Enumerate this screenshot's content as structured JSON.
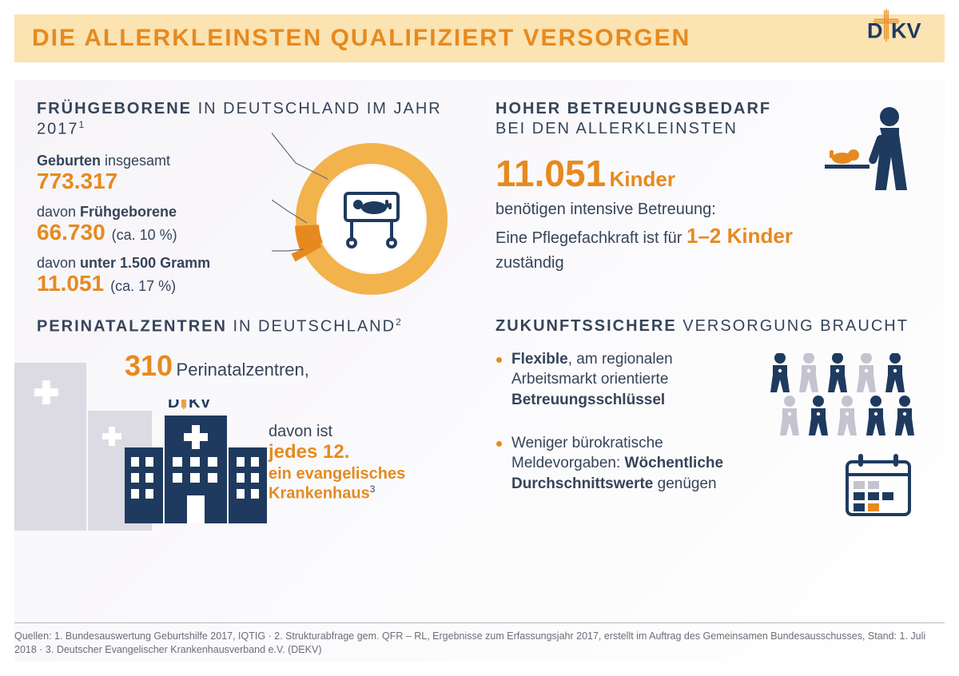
{
  "colors": {
    "accent_orange": "#e68a1f",
    "header_bg": "#fbe3b2",
    "navy": "#1f3a5f",
    "body_text": "#36445a",
    "light_bg_building": "#d8d7e0",
    "donut_ring": "#f2b24c",
    "donut_dark": "#e68a1f",
    "donut_thin": "#6b6e78"
  },
  "header": {
    "title": "DIE ALLERKLEINSTEN QUALIFIZIERT VERSORGEN",
    "logo_text": "DEKV"
  },
  "tl": {
    "title_strong": "FRÜHGEBORENE",
    "title_rest": " IN DEUTSCHLAND IM JAHR 2017",
    "title_sup": "1",
    "stats": [
      {
        "label_pre": "Geburten",
        "label_strong": "",
        "label_post": " insgesamt",
        "value": "773.317",
        "note": ""
      },
      {
        "label_pre": "davon ",
        "label_strong": "Frühgeborene",
        "label_post": "",
        "value": "66.730",
        "note": "(ca. 10 %)"
      },
      {
        "label_pre": "davon ",
        "label_strong": "unter 1.500 Gramm",
        "label_post": "",
        "value": "11.051",
        "note": "(ca. 17 %)"
      }
    ],
    "donut": {
      "type": "donut",
      "outer_radius": 95,
      "inner_radius": 68,
      "ring_color": "#f2b24c",
      "inner_circle_fill": "#ffffff",
      "wedge_color": "#e68a1f",
      "wedge_start_deg": 200,
      "wedge_span_deg": 36,
      "leader_color": "#6b6e78"
    }
  },
  "tr": {
    "title_strong": "HOHER BETREUUNGSBEDARF",
    "title_rest": "BEI DEN ALLERKLEINSTEN",
    "big_number": "11.051",
    "big_label": "Kinder",
    "line1": "benötigen intensive Betreuung:",
    "line2_pre": "Eine Pflegefachkraft ist für ",
    "line2_highlight": "1–2 Kinder",
    "line3": "zuständig"
  },
  "bl": {
    "title_strong": "PERINATALZENTREN",
    "title_rest": " IN DEUTSCHLAND",
    "title_sup": "2",
    "num": "310",
    "num_label": "Perinatalzentren,",
    "sub_pre": "davon ist",
    "sub_orange1": "jedes 12.",
    "sub_orange2": "ein evangelisches Krankenhaus",
    "sub_sup": "3"
  },
  "br": {
    "title_strong": "ZUKUNFTSSICHERE",
    "title_rest": " VERSORGUNG BRAUCHT",
    "bullets": [
      {
        "html": "<strong>Flexible</strong>, am regionalen Arbeitsmarkt orientierte <strong>Betreuungsschlüssel</strong>"
      },
      {
        "html": "Weniger bürokratische Meldevorgaben: <strong>Wöchentliche Durchschnitts­werte</strong> genügen"
      }
    ],
    "people": {
      "type": "icon-grid",
      "count": 10,
      "dark_indices": [
        0,
        2,
        4,
        6,
        8,
        9
      ],
      "dark_color": "#1f3a5f",
      "light_color": "#c3c4cf"
    }
  },
  "sources": {
    "text": "Quellen: 1. Bundesauswertung Geburtshilfe 2017, IQTIG  ·  2. Strukturabfrage gem. QFR – RL, Ergebnisse zum Erfassungsjahr 2017, erstellt im Auftrag des Gemeinsamen Bundesausschusses, Stand: 1. Juli 2018  ·  3. Deutscher Evangelischer Krankenhausverband e.V. (DEKV)"
  }
}
